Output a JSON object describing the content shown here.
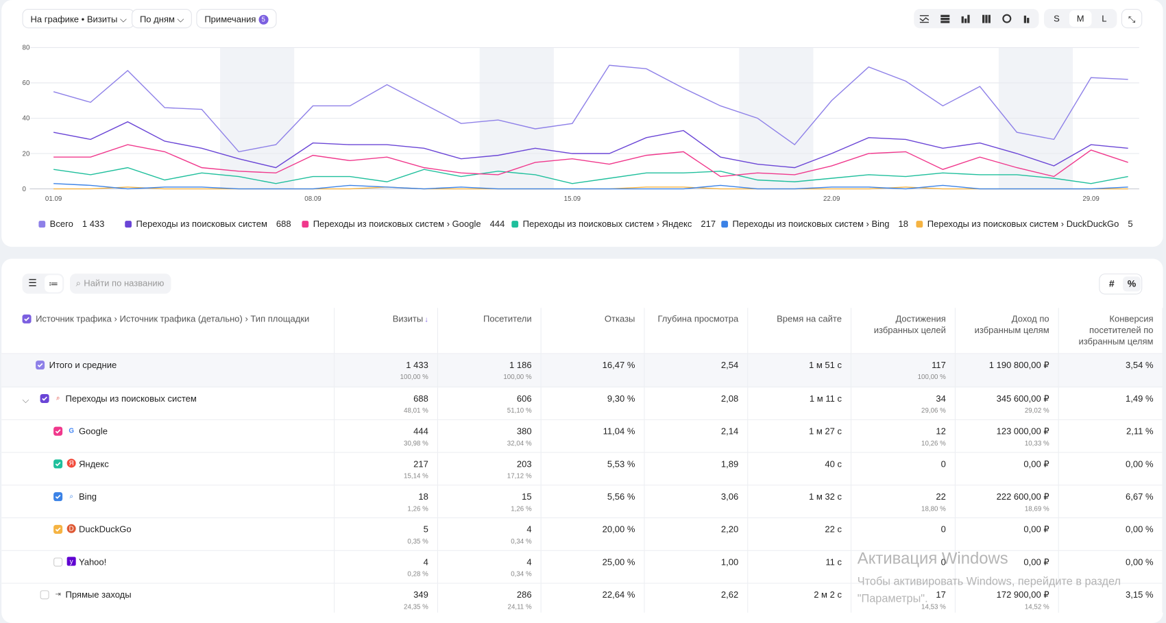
{
  "controls": {
    "chart_by": "На графике • Визиты",
    "period": "По дням",
    "notes": "Примечания",
    "notes_count": 5,
    "sizes": [
      "S",
      "M",
      "L"
    ]
  },
  "chart_data": {
    "type": "line",
    "categories": [
      "01.09",
      null,
      null,
      null,
      null,
      null,
      null,
      "08.09",
      null,
      null,
      null,
      null,
      null,
      null,
      "15.09",
      null,
      null,
      null,
      null,
      null,
      null,
      "22.09",
      null,
      null,
      null,
      null,
      null,
      null,
      "29.09",
      null
    ],
    "ylim": [
      0,
      80
    ],
    "yticks": [
      0,
      20,
      40,
      60,
      80
    ],
    "grid": true,
    "series": [
      {
        "name": "Всего",
        "total": "1 433",
        "color": "#8e80e8",
        "values": [
          55,
          49,
          67,
          46,
          45,
          21,
          25,
          47,
          47,
          59,
          48,
          37,
          39,
          34,
          37,
          70,
          68,
          57,
          47,
          40,
          25,
          50,
          69,
          61,
          47,
          58,
          32,
          28,
          63,
          62
        ]
      },
      {
        "name": "Переходы из поисковых систем",
        "total": "688",
        "color": "#6a45d6",
        "values": [
          32,
          28,
          38,
          27,
          23,
          17,
          12,
          26,
          25,
          25,
          23,
          17,
          19,
          23,
          20,
          20,
          29,
          33,
          18,
          14,
          12,
          20,
          29,
          28,
          23,
          26,
          20,
          13,
          25,
          23
        ]
      },
      {
        "name": "Переходы из поисковых систем › Google",
        "total": "444",
        "color": "#f0388c",
        "values": [
          18,
          18,
          25,
          21,
          12,
          10,
          9,
          19,
          16,
          18,
          12,
          9,
          8,
          15,
          17,
          14,
          19,
          21,
          7,
          9,
          8,
          13,
          20,
          21,
          11,
          18,
          12,
          7,
          22,
          15
        ]
      },
      {
        "name": "Переходы из поисковых систем › Яндекс",
        "total": "217",
        "color": "#1fbf9c",
        "values": [
          11,
          8,
          12,
          5,
          9,
          7,
          3,
          7,
          7,
          4,
          11,
          7,
          10,
          8,
          3,
          6,
          9,
          9,
          10,
          5,
          4,
          6,
          8,
          7,
          9,
          8,
          8,
          6,
          3,
          7
        ]
      },
      {
        "name": "Переходы из поисковых систем › Bing",
        "total": "18",
        "color": "#3b82e6",
        "values": [
          3,
          2,
          0,
          1,
          1,
          0,
          0,
          0,
          2,
          1,
          0,
          1,
          0,
          0,
          0,
          0,
          0,
          0,
          2,
          0,
          0,
          1,
          1,
          0,
          2,
          0,
          0,
          0,
          0,
          1
        ]
      },
      {
        "name": "Переходы из поисковых систем › DuckDuckGo",
        "total": "5",
        "color": "#f5b342",
        "values": [
          0,
          0,
          1,
          0,
          0,
          0,
          0,
          0,
          0,
          1,
          0,
          0,
          0,
          0,
          0,
          0,
          1,
          1,
          0,
          0,
          0,
          0,
          0,
          1,
          0,
          0,
          0,
          0,
          0,
          0
        ]
      }
    ]
  },
  "table": {
    "search_placeholder": "Найти по названию",
    "mode_buttons": [
      "#",
      "%"
    ],
    "columns": [
      "Источник трафика › Источник трафика (детально) › Тип площадки",
      "Визиты",
      "Посетители",
      "Отказы",
      "Глубина просмотра",
      "Время на сайте",
      "Достижения избранных целей",
      "Доход по избранным целям",
      "Конверсия посетителей по избранным целям"
    ],
    "total": {
      "label": "Итого и средние",
      "color": "#8e80e8",
      "cells": [
        [
          "1 433",
          "100,00 %"
        ],
        [
          "1 186",
          "100,00 %"
        ],
        [
          "16,47 %"
        ],
        [
          "2,54"
        ],
        [
          "1 м 51 с"
        ],
        [
          "117",
          "100,00 %"
        ],
        [
          "1 190 800,00 ₽"
        ],
        [
          "3,54 %"
        ]
      ]
    },
    "rows": [
      {
        "label": "Переходы из поисковых систем",
        "color": "#6a45d6",
        "cells": [
          [
            "688",
            "48,01 %"
          ],
          [
            "606",
            "51,10 %"
          ],
          [
            "9,30 %"
          ],
          [
            "2,08"
          ],
          [
            "1 м 11 с"
          ],
          [
            "34",
            "29,06 %"
          ],
          [
            "345 600,00 ₽",
            "29,02 %"
          ],
          [
            "1,49 %"
          ]
        ],
        "children": [
          {
            "label": "Google",
            "color": "#f0388c",
            "cells": [
              [
                "444",
                "30,98 %"
              ],
              [
                "380",
                "32,04 %"
              ],
              [
                "11,04 %"
              ],
              [
                "2,14"
              ],
              [
                "1 м 27 с"
              ],
              [
                "12",
                "10,26 %"
              ],
              [
                "123 000,00 ₽",
                "10,33 %"
              ],
              [
                "2,11 %"
              ]
            ]
          },
          {
            "label": "Яндекс",
            "color": "#1fbf9c",
            "cells": [
              [
                "217",
                "15,14 %"
              ],
              [
                "203",
                "17,12 %"
              ],
              [
                "5,53 %"
              ],
              [
                "1,89"
              ],
              [
                "40 с"
              ],
              [
                "0"
              ],
              [
                "0,00 ₽"
              ],
              [
                "0,00 %"
              ]
            ]
          },
          {
            "label": "Bing",
            "color": "#3b82e6",
            "cells": [
              [
                "18",
                "1,26 %"
              ],
              [
                "15",
                "1,26 %"
              ],
              [
                "5,56 %"
              ],
              [
                "3,06"
              ],
              [
                "1 м 32 с"
              ],
              [
                "22",
                "18,80 %"
              ],
              [
                "222 600,00 ₽",
                "18,69 %"
              ],
              [
                "6,67 %"
              ]
            ]
          },
          {
            "label": "DuckDuckGo",
            "color": "#f5b342",
            "cells": [
              [
                "5",
                "0,35 %"
              ],
              [
                "4",
                "0,34 %"
              ],
              [
                "20,00 %"
              ],
              [
                "2,20"
              ],
              [
                "22 с"
              ],
              [
                "0"
              ],
              [
                "0,00 ₽"
              ],
              [
                "0,00 %"
              ]
            ]
          },
          {
            "label": "Yahoo!",
            "color": null,
            "cells": [
              [
                "4",
                "0,28 %"
              ],
              [
                "4",
                "0,34 %"
              ],
              [
                "25,00 %"
              ],
              [
                "1,00"
              ],
              [
                "11 с"
              ],
              [
                "0"
              ],
              [
                "0,00 ₽"
              ],
              [
                "0,00 %"
              ]
            ]
          }
        ]
      },
      {
        "label": "Прямые заходы",
        "color": null,
        "cells": [
          [
            "349",
            "24,35 %"
          ],
          [
            "286",
            "24,11 %"
          ],
          [
            "22,64 %"
          ],
          [
            "2,62"
          ],
          [
            "2 м 2 с"
          ],
          [
            "17",
            "14,53 %"
          ],
          [
            "172 900,00 ₽",
            "14,52 %"
          ],
          [
            "3,15 %"
          ]
        ]
      }
    ]
  },
  "watermark": {
    "title": "Активация Windows",
    "text": "Чтобы активировать Windows, перейдите в раздел \"Параметры\"."
  }
}
